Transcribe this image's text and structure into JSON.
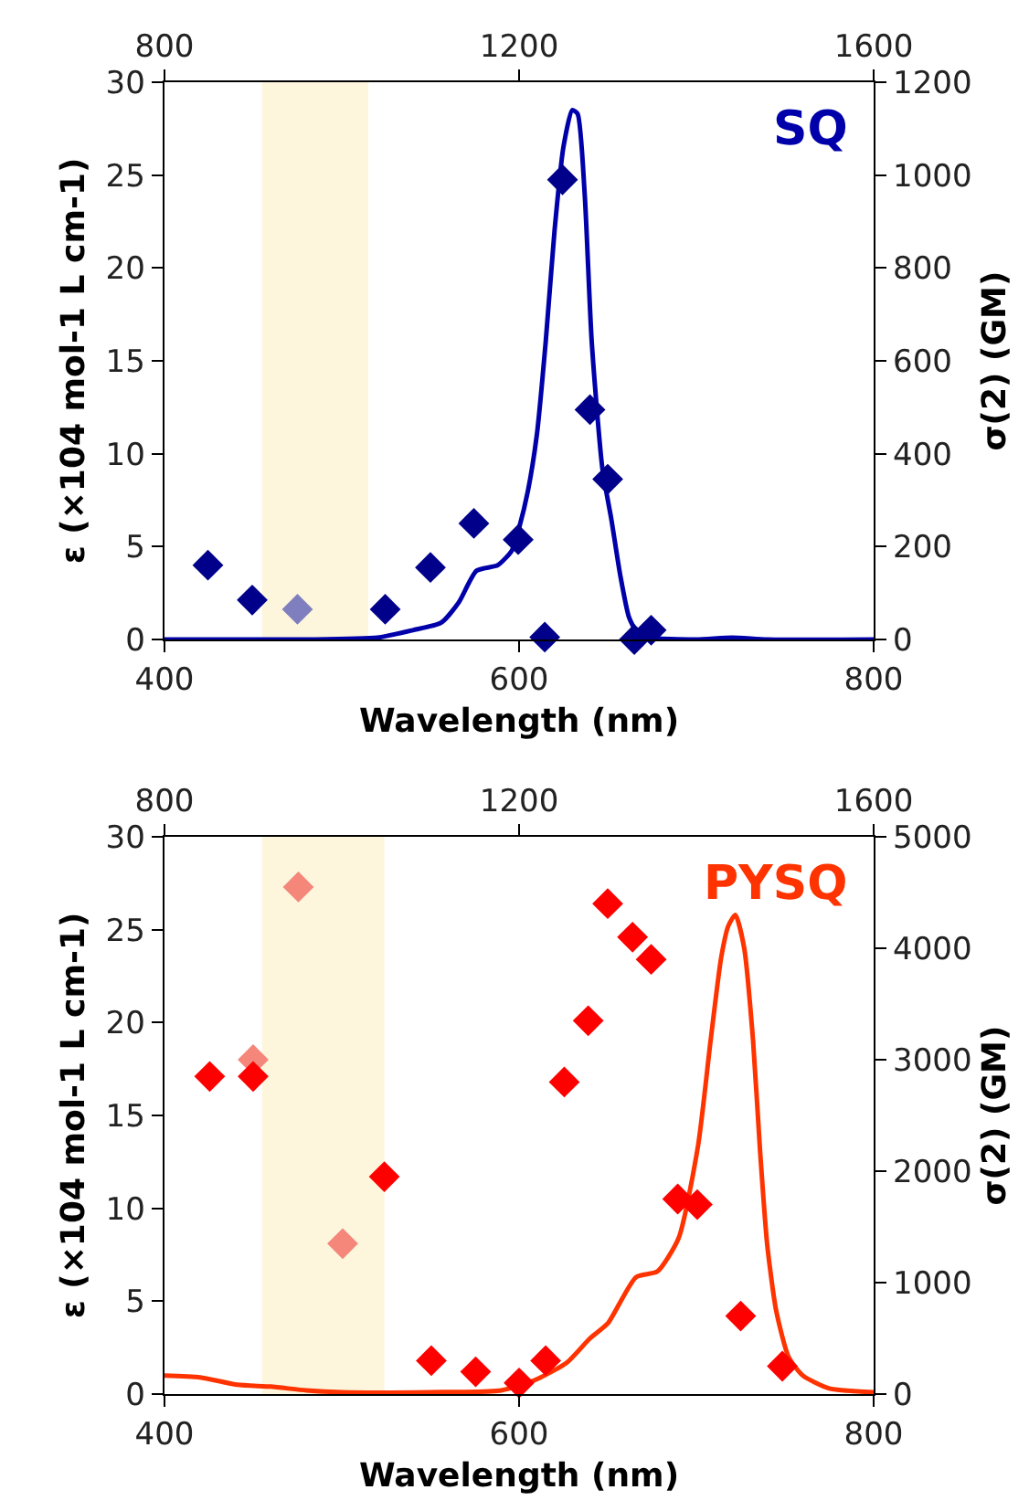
{
  "chart_data": [
    {
      "type": "line",
      "xlabel": "Wavelength (nm)",
      "ylabel": "ε (×104 mol-1 L cm-1)",
      "y2label": "σ(2) (GM)",
      "annotations": [
        "SQ"
      ],
      "xlim": [
        400,
        800
      ],
      "xticks": [
        400,
        600,
        800
      ],
      "x2lim": [
        800,
        1600
      ],
      "x2ticks": [
        800,
        1200,
        1600
      ],
      "ylim": [
        0,
        30
      ],
      "yticks": [
        0,
        5,
        10,
        15,
        20,
        25,
        30
      ],
      "y2lim": [
        0,
        1200
      ],
      "y2ticks": [
        0,
        200,
        400,
        600,
        800,
        1000,
        1200
      ],
      "grid": false,
      "bands": [
        {
          "axis": "x",
          "from": 455,
          "to": 515,
          "color": "#fdf5dc"
        }
      ],
      "series": [
        {
          "type": "scatter",
          "axis": "y2",
          "marker": "diamond",
          "colors": [
            "#00008b",
            "#00008b",
            "#7f7fbf",
            "#00008b",
            "#00008b",
            "#00008b",
            "#00008b",
            "#00008b",
            "#00008b",
            "#00008b",
            "#00008b",
            "#00008b",
            "#00008b"
          ],
          "x": [
            424.5,
            449.5,
            475,
            524.5,
            550,
            574.5,
            599.5,
            614.5,
            624.5,
            640,
            650,
            665,
            674.5
          ],
          "values": [
            160,
            85,
            65,
            65,
            155,
            250,
            215,
            5,
            990,
            495,
            345,
            0,
            20
          ]
        },
        {
          "color": "#0000aa",
          "line_style": "solid",
          "x": [
            400,
            480,
            520,
            540,
            556,
            566,
            576,
            588,
            596,
            600,
            605,
            610,
            615,
            620,
            625,
            630,
            633,
            637,
            641,
            647,
            652,
            657,
            662,
            667,
            672,
            700,
            720,
            740,
            800
          ],
          "values": [
            0,
            0,
            0.1,
            0.5,
            0.9,
            2,
            3.7,
            4,
            4.8,
            6,
            8,
            11,
            16,
            22,
            26.5,
            28.5,
            28.3,
            24,
            16,
            9.2,
            6.5,
            3.5,
            1.2,
            0.3,
            0.1,
            0,
            0.1,
            0,
            0
          ]
        }
      ]
    },
    {
      "type": "line",
      "xlabel": "Wavelength (nm)",
      "ylabel": "ε (×104 mol-1 L cm-1)",
      "y2label": "σ(2) (GM)",
      "annotations": [
        "PYSQ"
      ],
      "xlim": [
        400,
        800
      ],
      "xticks": [
        400,
        600,
        800
      ],
      "x2lim": [
        800,
        1600
      ],
      "x2ticks": [
        800,
        1200,
        1600
      ],
      "ylim": [
        0,
        30
      ],
      "yticks": [
        0,
        5,
        10,
        15,
        20,
        25,
        30
      ],
      "y2lim": [
        0,
        5000
      ],
      "y2ticks": [
        0,
        1000,
        2000,
        3000,
        4000,
        5000
      ],
      "grid": false,
      "bands": [
        {
          "axis": "x",
          "from": 455,
          "to": 524,
          "color": "#fdf5dc"
        }
      ],
      "series": [
        {
          "type": "scatter",
          "axis": "y2",
          "marker": "diamond",
          "colors": [
            "#ff0000",
            "#f4867a",
            "#ff0000",
            "#f4867a",
            "#f4867a",
            "#ff0000",
            "#ff0000",
            "#ff0000",
            "#ff0000",
            "#ff0000",
            "#ff0000",
            "#ff0000",
            "#ff0000",
            "#ff0000",
            "#ff0000",
            "#ff0000",
            "#ff0000",
            "#ff0000",
            "#ff0000"
          ],
          "x": [
            425.5,
            450,
            450,
            475.5,
            500.5,
            524,
            550.5,
            575.5,
            600,
            615,
            625.5,
            639,
            650,
            664,
            674.5,
            689.5,
            700.5,
            725,
            748.5
          ],
          "values": [
            2850,
            3000,
            2850,
            4550,
            1350,
            1950,
            300,
            200,
            100,
            300,
            2800,
            3350,
            4400,
            4100,
            3900,
            1750,
            1700,
            700,
            250
          ]
        },
        {
          "color": "#ff3300",
          "line_style": "solid",
          "x": [
            400,
            420,
            441,
            460,
            480,
            500,
            550,
            590,
            610,
            627,
            640,
            650,
            666,
            678,
            690,
            701,
            708,
            714,
            718,
            722,
            727,
            732,
            736,
            740,
            745,
            752,
            760,
            775,
            800
          ],
          "values": [
            1,
            0.9,
            0.5,
            0.4,
            0.2,
            0.1,
            0.1,
            0.2,
            0.8,
            1.7,
            3,
            3.8,
            6.3,
            6.6,
            8.4,
            13.4,
            19,
            23.5,
            25.2,
            25.8,
            24,
            19,
            13,
            8,
            4.5,
            2,
            1,
            0.3,
            0.1
          ]
        }
      ]
    }
  ]
}
